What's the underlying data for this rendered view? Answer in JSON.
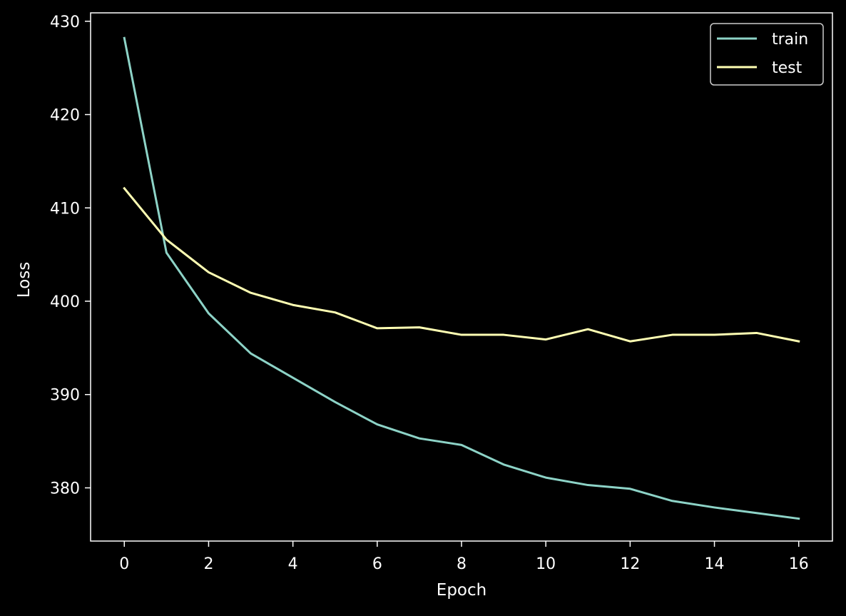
{
  "chart_data": {
    "type": "line",
    "title": "",
    "xlabel": "Epoch",
    "ylabel": "Loss",
    "x": [
      0,
      1,
      2,
      3,
      4,
      5,
      6,
      7,
      8,
      9,
      10,
      11,
      12,
      13,
      14,
      15,
      16
    ],
    "series": [
      {
        "name": "train",
        "color": "#8dd3c7",
        "values": [
          428.2,
          405.2,
          398.7,
          394.4,
          391.8,
          389.2,
          386.8,
          385.3,
          384.6,
          382.5,
          381.1,
          380.3,
          379.9,
          378.6,
          377.9,
          377.3,
          376.7
        ]
      },
      {
        "name": "test",
        "color": "#ffffb3",
        "values": [
          412.1,
          406.6,
          403.1,
          400.9,
          399.6,
          398.8,
          397.1,
          397.2,
          396.4,
          396.4,
          395.9,
          397.0,
          395.7,
          396.4,
          396.4,
          396.6,
          395.7
        ]
      }
    ],
    "xlim": [
      -0.8,
      16.8
    ],
    "ylim": [
      374.3,
      430.9
    ],
    "xticks": [
      0,
      2,
      4,
      6,
      8,
      10,
      12,
      14,
      16
    ],
    "yticks": [
      380,
      390,
      400,
      410,
      420,
      430
    ],
    "grid": false,
    "legend_position": "top-right",
    "background": "#000000",
    "axis_color": "#ffffff"
  }
}
